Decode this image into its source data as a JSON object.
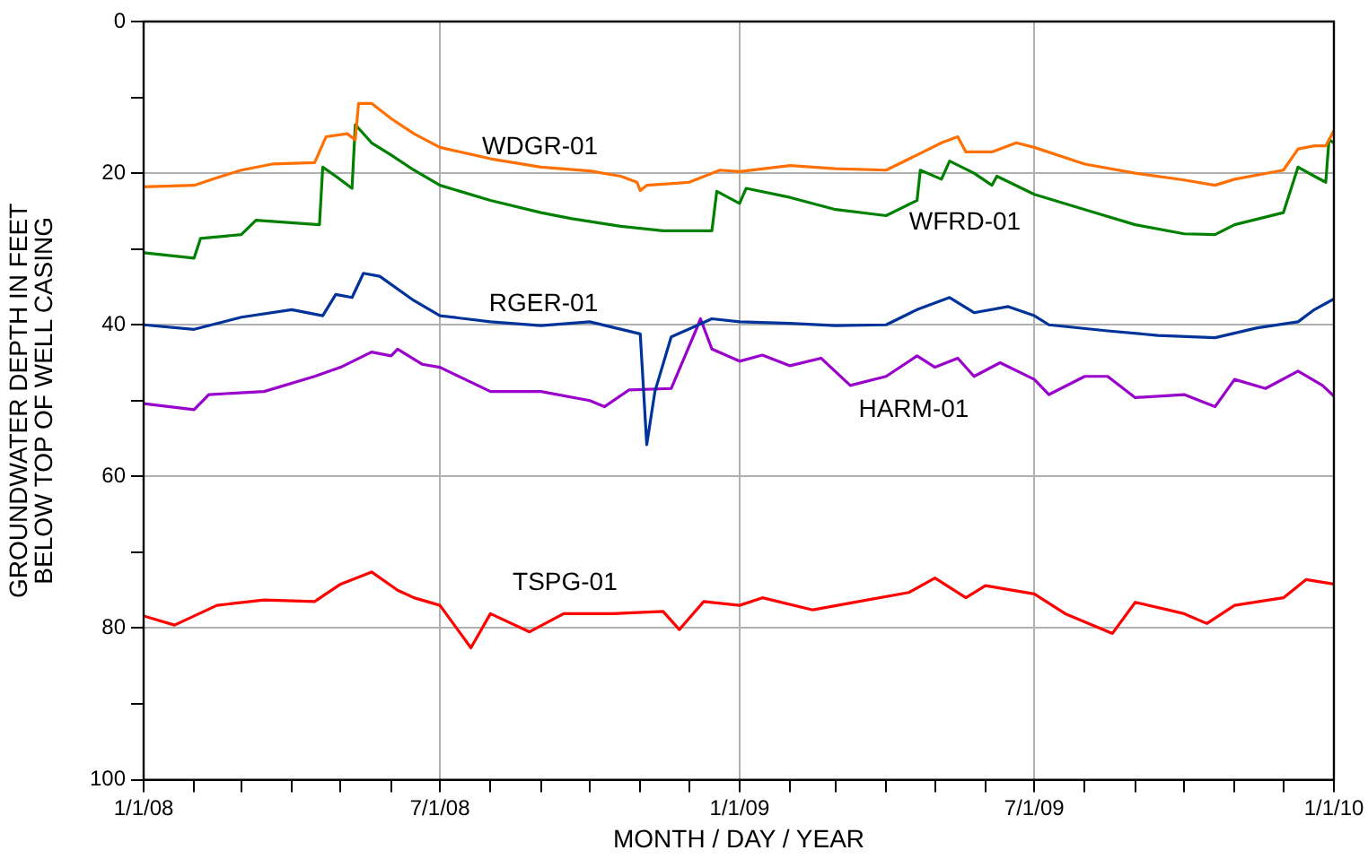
{
  "chart_data": {
    "type": "line",
    "xlabel": "MONTH / DAY / YEAR",
    "ylabel": "GROUNDWATER DEPTH IN FEET\nBELOW TOP OF WELL CASING",
    "grid": true,
    "legend": false,
    "marker": "none",
    "line_style": "solid",
    "xlim": [
      "2008-01-01",
      "2010-01-01"
    ],
    "xticks": [
      {
        "value": "2008-01-01",
        "label": "1/1/08"
      },
      {
        "value": "2008-02-01",
        "label": null
      },
      {
        "value": "2008-03-01",
        "label": null
      },
      {
        "value": "2008-04-01",
        "label": null
      },
      {
        "value": "2008-05-01",
        "label": null
      },
      {
        "value": "2008-06-01",
        "label": null
      },
      {
        "value": "2008-07-01",
        "label": "7/1/08"
      },
      {
        "value": "2008-08-01",
        "label": null
      },
      {
        "value": "2008-09-01",
        "label": null
      },
      {
        "value": "2008-10-01",
        "label": null
      },
      {
        "value": "2008-11-01",
        "label": null
      },
      {
        "value": "2008-12-01",
        "label": null
      },
      {
        "value": "2009-01-01",
        "label": "1/1/09"
      },
      {
        "value": "2009-02-01",
        "label": null
      },
      {
        "value": "2009-03-01",
        "label": null
      },
      {
        "value": "2009-04-01",
        "label": null
      },
      {
        "value": "2009-05-01",
        "label": null
      },
      {
        "value": "2009-06-01",
        "label": null
      },
      {
        "value": "2009-07-01",
        "label": "7/1/09"
      },
      {
        "value": "2009-08-01",
        "label": null
      },
      {
        "value": "2009-09-01",
        "label": null
      },
      {
        "value": "2009-10-01",
        "label": null
      },
      {
        "value": "2009-11-01",
        "label": null
      },
      {
        "value": "2009-12-01",
        "label": null
      },
      {
        "value": "2010-01-01",
        "label": "1/1/10"
      }
    ],
    "ylim": [
      100,
      0
    ],
    "yticks": [
      0,
      {
        "value": 10,
        "label": null
      },
      20,
      {
        "value": 30,
        "label": null
      },
      40,
      {
        "value": 50,
        "label": null
      },
      60,
      {
        "value": 70,
        "label": null
      },
      80,
      {
        "value": 90,
        "label": null
      },
      100
    ],
    "series": [
      {
        "name": "WDGR-01",
        "color": "#ff7000",
        "x": [
          "2008-01-01",
          "2008-02-01",
          "2008-02-15",
          "2008-03-01",
          "2008-03-20",
          "2008-04-15",
          "2008-04-22",
          "2008-05-05",
          "2008-05-10",
          "2008-05-12",
          "2008-05-20",
          "2008-06-01",
          "2008-06-15",
          "2008-07-01",
          "2008-08-01",
          "2008-09-01",
          "2008-10-01",
          "2008-10-20",
          "2008-10-30",
          "2008-11-01",
          "2008-11-05",
          "2008-12-01",
          "2008-12-20",
          "2009-01-01",
          "2009-02-01",
          "2009-03-01",
          "2009-04-01",
          "2009-04-20",
          "2009-05-05",
          "2009-05-15",
          "2009-05-20",
          "2009-06-05",
          "2009-06-20",
          "2009-07-01",
          "2009-08-01",
          "2009-09-01",
          "2009-10-01",
          "2009-10-20",
          "2009-11-01",
          "2009-12-01",
          "2009-12-10",
          "2009-12-20",
          "2009-12-27",
          "2010-01-01"
        ],
        "values": [
          21.8,
          21.6,
          20.6,
          19.6,
          18.8,
          18.6,
          15.2,
          14.8,
          15.6,
          10.8,
          10.8,
          12.8,
          14.8,
          16.6,
          18.1,
          19.2,
          19.7,
          20.4,
          21.2,
          22.3,
          21.6,
          21.2,
          19.6,
          19.8,
          19.0,
          19.4,
          19.6,
          17.6,
          16.0,
          15.2,
          17.2,
          17.2,
          16.0,
          16.6,
          18.8,
          20.0,
          20.9,
          21.6,
          20.8,
          19.6,
          16.8,
          16.4,
          16.4,
          14.4
        ]
      },
      {
        "name": "WFRD-01",
        "color": "#008000",
        "x": [
          "2008-01-01",
          "2008-02-01",
          "2008-02-05",
          "2008-03-01",
          "2008-03-10",
          "2008-04-18",
          "2008-04-20",
          "2008-04-28",
          "2008-05-08",
          "2008-05-10",
          "2008-05-20",
          "2008-06-01",
          "2008-06-15",
          "2008-07-01",
          "2008-08-01",
          "2008-09-01",
          "2008-09-20",
          "2008-10-20",
          "2008-11-15",
          "2008-12-15",
          "2008-12-18",
          "2009-01-01",
          "2009-01-05",
          "2009-02-01",
          "2009-03-01",
          "2009-04-01",
          "2009-04-20",
          "2009-04-22",
          "2009-05-05",
          "2009-05-10",
          "2009-05-25",
          "2009-06-05",
          "2009-06-08",
          "2009-07-01",
          "2009-08-01",
          "2009-09-01",
          "2009-10-01",
          "2009-10-20",
          "2009-11-01",
          "2009-12-01",
          "2009-12-10",
          "2009-12-20",
          "2009-12-27",
          "2009-12-29",
          "2010-01-01"
        ],
        "values": [
          30.5,
          31.2,
          28.6,
          28.1,
          26.2,
          26.8,
          19.2,
          20.4,
          22.0,
          13.6,
          16.0,
          17.6,
          19.6,
          21.6,
          23.6,
          25.2,
          26.0,
          27.0,
          27.6,
          27.6,
          22.4,
          24.0,
          22.0,
          23.2,
          24.8,
          25.6,
          23.6,
          19.6,
          20.8,
          18.4,
          20.0,
          21.6,
          20.4,
          22.8,
          24.8,
          26.8,
          28.0,
          28.1,
          26.8,
          25.2,
          19.2,
          20.4,
          21.2,
          15.6,
          16.0
        ]
      },
      {
        "name": "RGER-01",
        "color": "#003399",
        "x": [
          "2008-01-01",
          "2008-02-01",
          "2008-03-01",
          "2008-04-01",
          "2008-04-20",
          "2008-04-28",
          "2008-05-08",
          "2008-05-15",
          "2008-05-25",
          "2008-06-15",
          "2008-07-01",
          "2008-08-01",
          "2008-09-01",
          "2008-10-01",
          "2008-11-01",
          "2008-11-05",
          "2008-11-10",
          "2008-11-20",
          "2008-12-15",
          "2009-01-01",
          "2009-02-01",
          "2009-03-01",
          "2009-04-01",
          "2009-04-20",
          "2009-05-10",
          "2009-05-25",
          "2009-06-15",
          "2009-07-01",
          "2009-07-10",
          "2009-08-15",
          "2009-09-15",
          "2009-10-20",
          "2009-11-15",
          "2009-12-10",
          "2009-12-20",
          "2010-01-01"
        ],
        "values": [
          40.0,
          40.6,
          39.0,
          38.0,
          38.8,
          36.0,
          36.4,
          33.2,
          33.6,
          36.8,
          38.8,
          39.6,
          40.1,
          39.6,
          41.2,
          55.8,
          48.8,
          41.6,
          39.2,
          39.6,
          39.8,
          40.1,
          40.0,
          38.0,
          36.4,
          38.4,
          37.6,
          38.8,
          40.0,
          40.8,
          41.4,
          41.7,
          40.4,
          39.6,
          38.0,
          36.6
        ]
      },
      {
        "name": "HARM-01",
        "color": "#9900cc",
        "x": [
          "2008-01-01",
          "2008-02-01",
          "2008-02-10",
          "2008-03-15",
          "2008-04-15",
          "2008-05-01",
          "2008-05-20",
          "2008-06-01",
          "2008-06-05",
          "2008-06-20",
          "2008-07-01",
          "2008-08-01",
          "2008-09-01",
          "2008-10-01",
          "2008-10-10",
          "2008-10-25",
          "2008-11-20",
          "2008-12-05",
          "2008-12-08",
          "2008-12-15",
          "2009-01-01",
          "2009-01-15",
          "2009-02-01",
          "2009-02-20",
          "2009-03-10",
          "2009-04-01",
          "2009-04-20",
          "2009-05-01",
          "2009-05-15",
          "2009-05-25",
          "2009-06-10",
          "2009-07-01",
          "2009-07-10",
          "2009-08-01",
          "2009-08-15",
          "2009-09-01",
          "2009-10-01",
          "2009-10-20",
          "2009-11-01",
          "2009-11-20",
          "2009-12-10",
          "2009-12-25",
          "2010-01-01"
        ],
        "values": [
          50.4,
          51.2,
          49.2,
          48.8,
          46.8,
          45.6,
          43.6,
          44.1,
          43.2,
          45.2,
          45.6,
          48.8,
          48.8,
          50.0,
          50.8,
          48.6,
          48.4,
          40.8,
          39.2,
          43.2,
          44.8,
          44.0,
          45.4,
          44.4,
          48.0,
          46.8,
          44.1,
          45.6,
          44.4,
          46.8,
          45.0,
          47.2,
          49.2,
          46.8,
          46.8,
          49.6,
          49.2,
          50.8,
          47.2,
          48.4,
          46.1,
          48.0,
          49.4
        ]
      },
      {
        "name": "TSPG-01",
        "color": "#ff0000",
        "x": [
          "2008-01-01",
          "2008-01-20",
          "2008-02-15",
          "2008-03-15",
          "2008-04-15",
          "2008-05-01",
          "2008-05-20",
          "2008-06-05",
          "2008-06-15",
          "2008-07-01",
          "2008-07-20",
          "2008-08-01",
          "2008-08-25",
          "2008-09-15",
          "2008-10-15",
          "2008-11-15",
          "2008-11-25",
          "2008-12-10",
          "2009-01-01",
          "2009-01-15",
          "2009-02-15",
          "2009-03-15",
          "2009-04-15",
          "2009-05-01",
          "2009-05-20",
          "2009-06-01",
          "2009-07-01",
          "2009-07-20",
          "2009-08-18",
          "2009-09-01",
          "2009-10-01",
          "2009-10-15",
          "2009-11-01",
          "2009-12-01",
          "2009-12-15",
          "2010-01-01"
        ],
        "values": [
          78.4,
          79.6,
          77.0,
          76.3,
          76.5,
          74.2,
          72.6,
          75.0,
          76.0,
          77.0,
          82.6,
          78.1,
          80.5,
          78.1,
          78.1,
          77.8,
          80.2,
          76.5,
          77.0,
          76.0,
          77.6,
          76.5,
          75.3,
          73.4,
          76.0,
          74.4,
          75.5,
          78.1,
          80.7,
          76.6,
          78.1,
          79.4,
          77.0,
          76.0,
          73.6,
          74.2
        ]
      }
    ]
  }
}
